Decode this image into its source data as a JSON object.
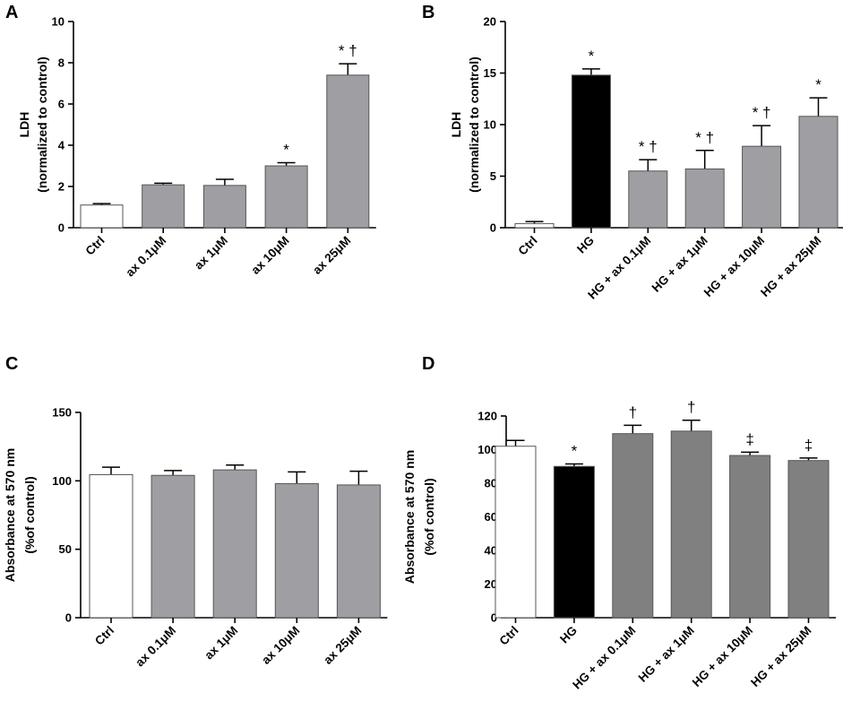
{
  "chart_data": [
    {
      "panel": "A",
      "type": "bar",
      "ylabel_lines": [
        "LDH",
        "(normalized to control)"
      ],
      "ylim": [
        0,
        10
      ],
      "yticks": [
        0,
        2,
        4,
        6,
        8,
        10
      ],
      "categories": [
        "Ctrl",
        "ax 0.1μM",
        "ax 1μM",
        "ax 10μM",
        "ax 25μM"
      ],
      "values": [
        1.1,
        2.08,
        2.05,
        3.0,
        7.4
      ],
      "errors": [
        0.07,
        0.08,
        0.3,
        0.15,
        0.55
      ],
      "colors": [
        "#ffffff",
        "#9e9ea3",
        "#9e9ea3",
        "#9e9ea3",
        "#9e9ea3"
      ],
      "annotations": [
        "",
        "",
        "",
        "*",
        "* †"
      ]
    },
    {
      "panel": "B",
      "type": "bar",
      "ylabel_lines": [
        "LDH",
        "(normalized to control)"
      ],
      "ylim": [
        0,
        20
      ],
      "yticks": [
        0,
        5,
        10,
        15,
        20
      ],
      "categories": [
        "Ctrl",
        "HG",
        "HG + ax 0.1μM",
        "HG + ax 1μM",
        "HG + ax 10μM",
        "HG + ax 25μM"
      ],
      "values": [
        0.4,
        14.8,
        5.5,
        5.7,
        7.9,
        10.8
      ],
      "errors": [
        0.2,
        0.6,
        1.1,
        1.8,
        2.0,
        1.8
      ],
      "colors": [
        "#ffffff",
        "#000000",
        "#9e9ea3",
        "#9e9ea3",
        "#9e9ea3",
        "#9e9ea3"
      ],
      "annotations": [
        "",
        "*",
        "* †",
        "* †",
        "* †",
        "*"
      ]
    },
    {
      "panel": "C",
      "type": "bar",
      "ylabel_lines": [
        "Absorbance at 570 nm",
        "(%of control)"
      ],
      "ylim": [
        0,
        150
      ],
      "yticks": [
        0,
        50,
        100,
        150
      ],
      "categories": [
        "Ctrl",
        "ax 0.1μM",
        "ax 1μM",
        "ax 10μM",
        "ax 25μM"
      ],
      "values": [
        104.5,
        104.0,
        108.0,
        98.0,
        97.0
      ],
      "errors": [
        5.5,
        3.5,
        3.5,
        8.5,
        10.0
      ],
      "colors": [
        "#ffffff",
        "#9e9ea3",
        "#9e9ea3",
        "#9e9ea3",
        "#9e9ea3"
      ],
      "annotations": [
        "",
        "",
        "",
        "",
        ""
      ]
    },
    {
      "panel": "D",
      "type": "bar",
      "ylabel_lines": [
        "Absorbance at 570 nm",
        "(%of control)"
      ],
      "ylim": [
        0,
        120
      ],
      "yticks": [
        0,
        20,
        40,
        60,
        80,
        100,
        120
      ],
      "categories": [
        "Ctrl",
        "HG",
        "HG + ax 0.1μM",
        "HG + ax 1μM",
        "HG + ax 10μM",
        "HG + ax 25μM"
      ],
      "values": [
        102.0,
        90.0,
        109.5,
        111.0,
        96.5,
        93.5
      ],
      "errors": [
        3.5,
        1.5,
        5.0,
        6.5,
        2.0,
        1.5
      ],
      "colors": [
        "#ffffff",
        "#000000",
        "#808080",
        "#808080",
        "#808080",
        "#808080"
      ],
      "annotations": [
        "",
        "*",
        "†",
        "†",
        "‡",
        "‡"
      ]
    }
  ]
}
